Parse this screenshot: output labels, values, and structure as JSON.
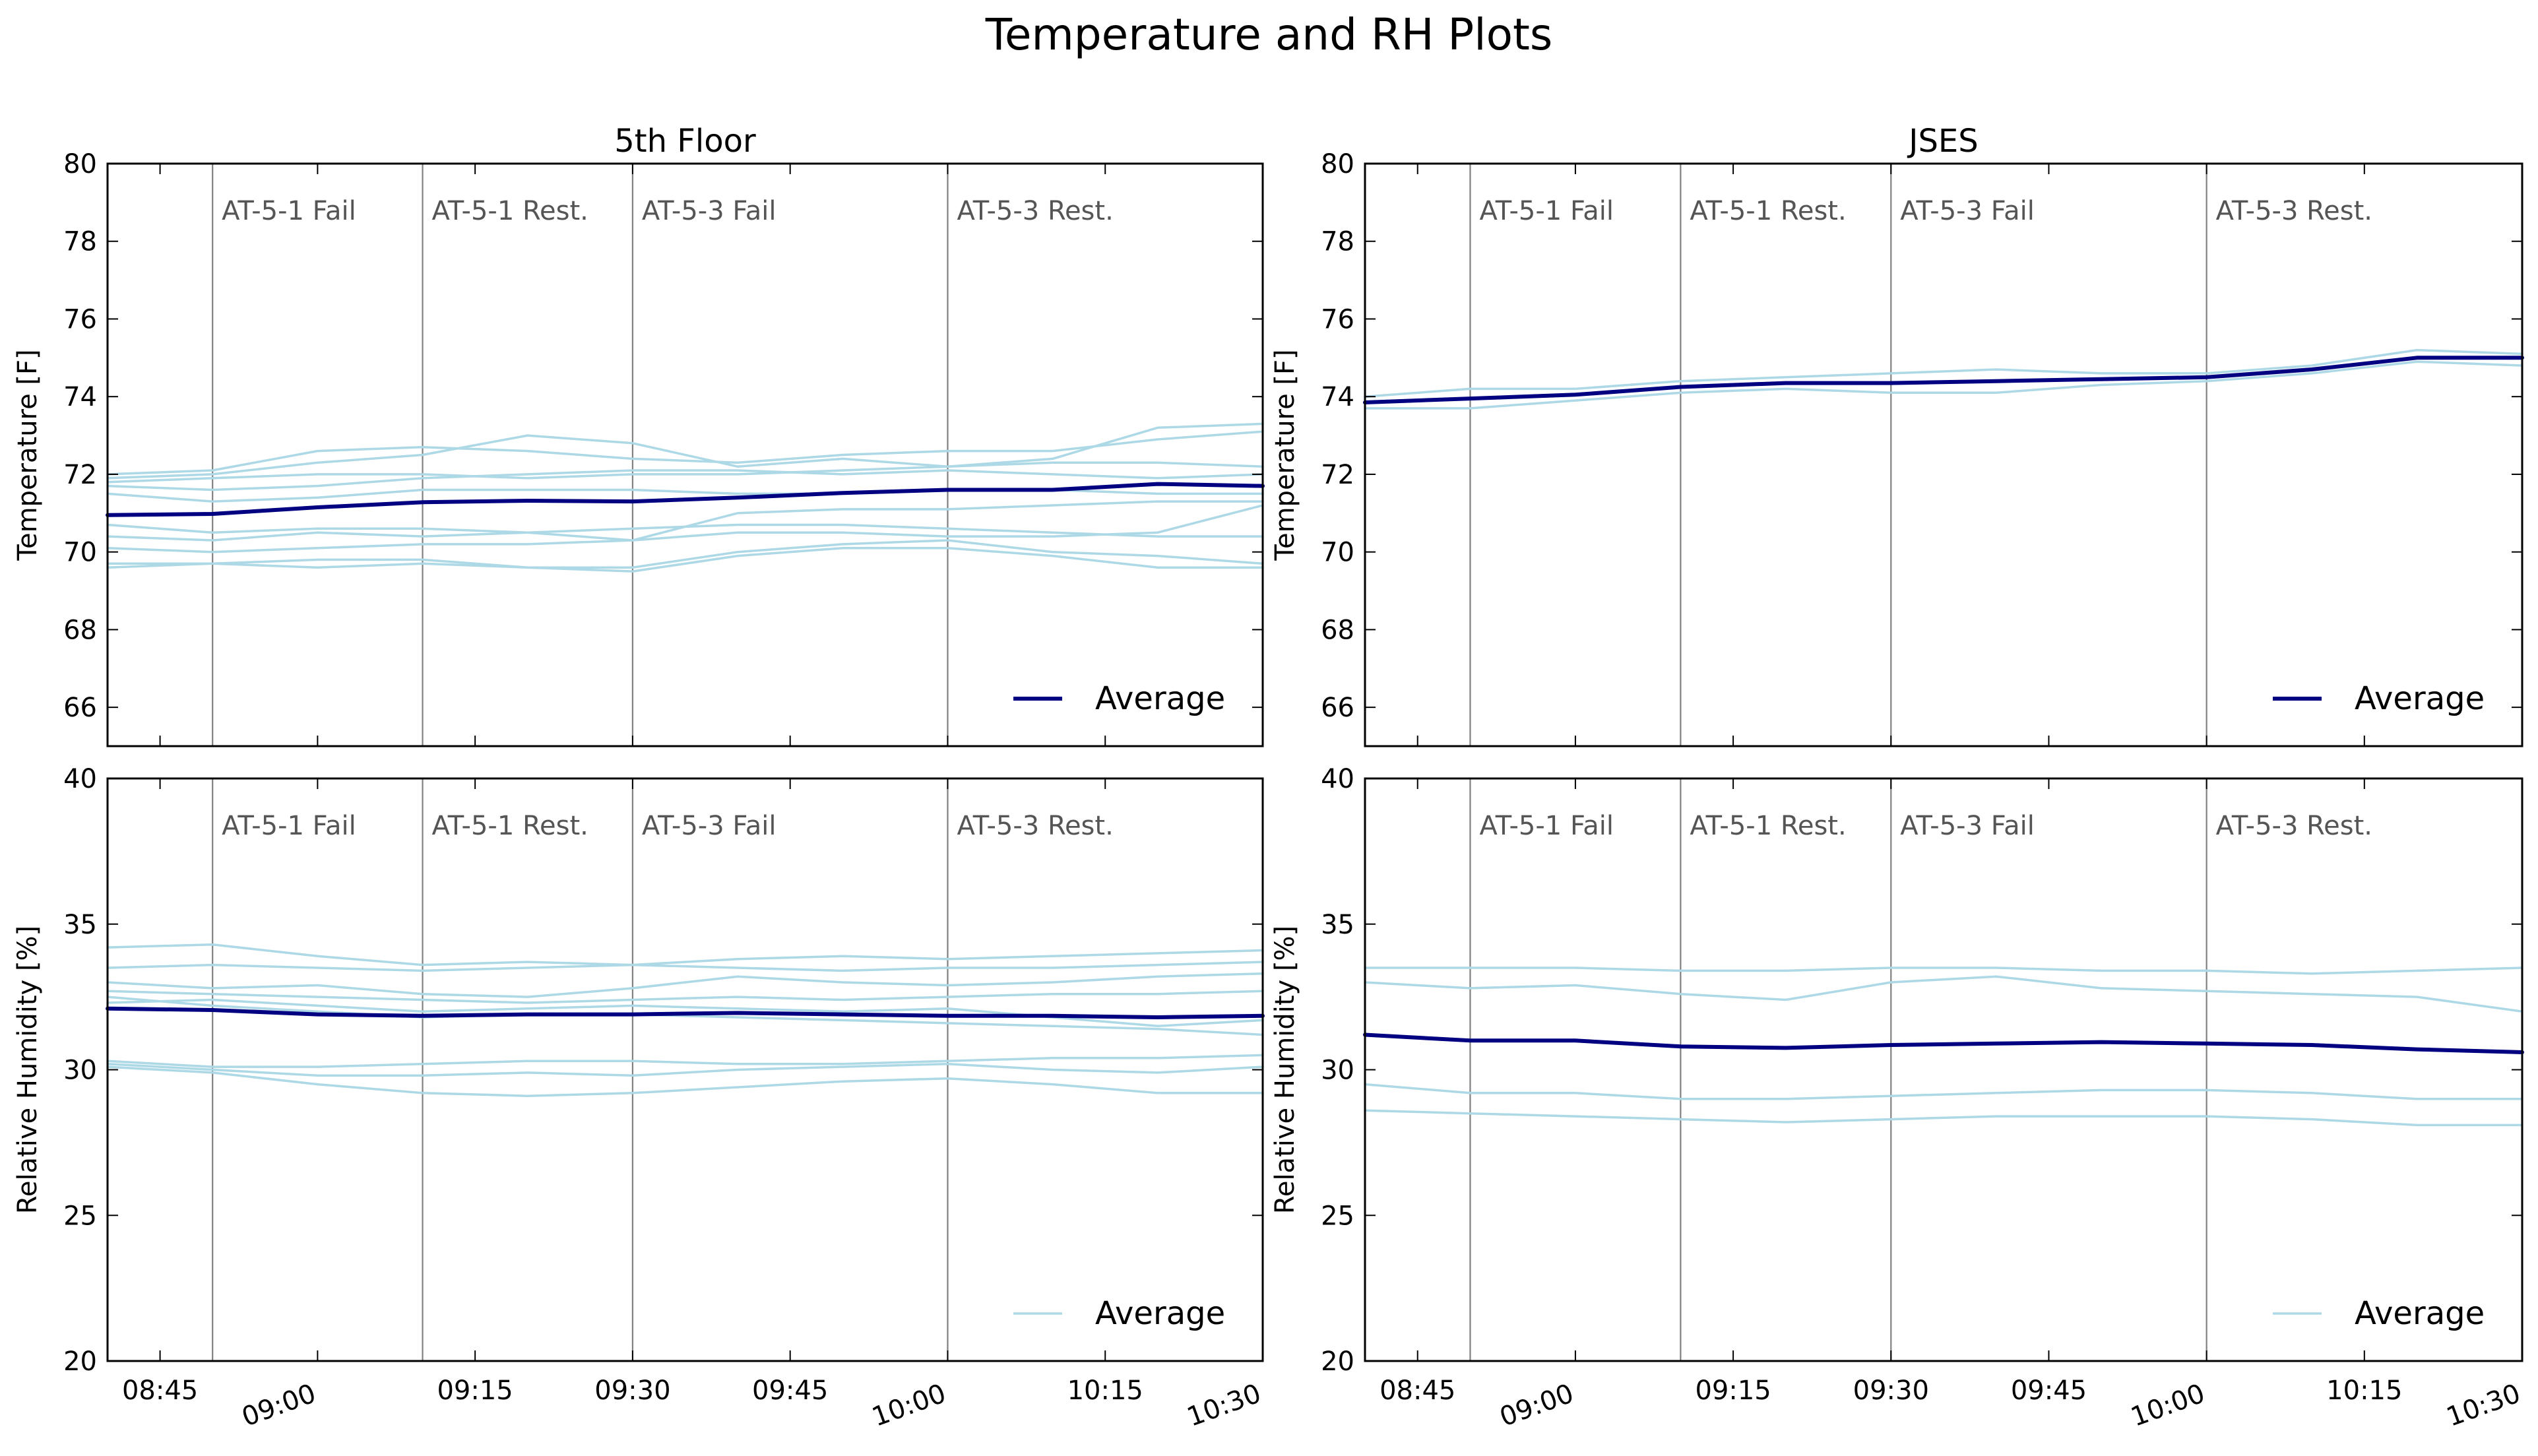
{
  "figure": {
    "title": "Temperature and RH Plots"
  },
  "colors": {
    "sensor": "#add8e6",
    "average": "#000080",
    "event_line": "#808080",
    "event_text": "#555555",
    "axes": "#000000"
  },
  "chart_data": [
    {
      "type": "line",
      "panel": "temperature",
      "column": "5th Floor",
      "title": "5th Floor",
      "xlabel": "",
      "ylabel": "Temperature [F]",
      "xlim": [
        "08:40",
        "10:30"
      ],
      "ylim": [
        65,
        80
      ],
      "xticks": [
        "08:45",
        "09:00",
        "09:15",
        "09:30",
        "09:45",
        "10:00",
        "10:15",
        "10:30"
      ],
      "xtick_rotated": [
        false,
        true,
        false,
        false,
        false,
        true,
        false,
        true
      ],
      "yticks": [
        66,
        68,
        70,
        72,
        74,
        76,
        78,
        80
      ],
      "events": [
        {
          "x": "08:50",
          "label": "AT-5-1 Fail"
        },
        {
          "x": "09:10",
          "label": "AT-5-1 Rest."
        },
        {
          "x": "09:30",
          "label": "AT-5-3 Fail"
        },
        {
          "x": "10:00",
          "label": "AT-5-3 Rest."
        }
      ],
      "legend": {
        "label": "Average",
        "placement": "lower right",
        "swatch": "average"
      },
      "x": [
        "08:40",
        "08:50",
        "09:00",
        "09:10",
        "09:20",
        "09:30",
        "09:40",
        "09:50",
        "10:00",
        "10:10",
        "10:20",
        "10:30"
      ],
      "series": [
        {
          "role": "sensor",
          "values": [
            72.0,
            72.1,
            72.6,
            72.7,
            72.6,
            72.4,
            72.3,
            72.5,
            72.6,
            72.6,
            72.9,
            73.1
          ]
        },
        {
          "role": "sensor",
          "values": [
            71.9,
            72.0,
            72.3,
            72.5,
            73.0,
            72.8,
            72.2,
            72.4,
            72.2,
            72.4,
            73.2,
            73.3
          ]
        },
        {
          "role": "sensor",
          "values": [
            71.8,
            71.9,
            72.0,
            72.0,
            71.9,
            72.0,
            72.0,
            72.1,
            72.2,
            72.3,
            72.3,
            72.2
          ]
        },
        {
          "role": "sensor",
          "values": [
            71.7,
            71.6,
            71.7,
            71.9,
            72.0,
            72.1,
            72.1,
            72.0,
            72.1,
            72.0,
            71.9,
            72.0
          ]
        },
        {
          "role": "sensor",
          "values": [
            71.5,
            71.3,
            71.4,
            71.6,
            71.6,
            71.6,
            71.5,
            71.5,
            71.6,
            71.6,
            71.5,
            71.5
          ]
        },
        {
          "role": "sensor",
          "values": [
            70.7,
            70.5,
            70.6,
            70.6,
            70.5,
            70.3,
            71.0,
            71.1,
            71.1,
            71.2,
            71.3,
            71.3
          ]
        },
        {
          "role": "sensor",
          "values": [
            70.4,
            70.3,
            70.5,
            70.4,
            70.5,
            70.6,
            70.7,
            70.7,
            70.6,
            70.5,
            70.4,
            70.4
          ]
        },
        {
          "role": "sensor",
          "values": [
            70.1,
            70.0,
            70.1,
            70.2,
            70.2,
            70.3,
            70.5,
            70.5,
            70.4,
            70.4,
            70.5,
            71.2
          ]
        },
        {
          "role": "sensor",
          "values": [
            69.7,
            69.7,
            69.8,
            69.8,
            69.6,
            69.6,
            70.0,
            70.2,
            70.3,
            70.0,
            69.9,
            69.7
          ]
        },
        {
          "role": "sensor",
          "values": [
            69.6,
            69.7,
            69.6,
            69.7,
            69.6,
            69.5,
            69.9,
            70.1,
            70.1,
            69.9,
            69.6,
            69.6
          ]
        },
        {
          "role": "average",
          "name": "Average",
          "values": [
            70.95,
            70.98,
            71.15,
            71.28,
            71.32,
            71.3,
            71.4,
            71.52,
            71.6,
            71.6,
            71.75,
            71.7
          ]
        }
      ]
    },
    {
      "type": "line",
      "panel": "temperature",
      "column": "JSES",
      "title": "JSES",
      "xlabel": "",
      "ylabel": "Temperature [F]",
      "xlim": [
        "08:40",
        "10:30"
      ],
      "ylim": [
        65,
        80
      ],
      "xticks": [
        "08:45",
        "09:00",
        "09:15",
        "09:30",
        "09:45",
        "10:00",
        "10:15",
        "10:30"
      ],
      "xtick_rotated": [
        false,
        true,
        false,
        false,
        false,
        true,
        false,
        true
      ],
      "yticks": [
        66,
        68,
        70,
        72,
        74,
        76,
        78,
        80
      ],
      "events": [
        {
          "x": "08:50",
          "label": "AT-5-1 Fail"
        },
        {
          "x": "09:10",
          "label": "AT-5-1 Rest."
        },
        {
          "x": "09:30",
          "label": "AT-5-3 Fail"
        },
        {
          "x": "10:00",
          "label": "AT-5-3 Rest."
        }
      ],
      "legend": {
        "label": "Average",
        "placement": "lower right",
        "swatch": "average"
      },
      "x": [
        "08:40",
        "08:50",
        "09:00",
        "09:10",
        "09:20",
        "09:30",
        "09:40",
        "09:50",
        "10:00",
        "10:10",
        "10:20",
        "10:30"
      ],
      "series": [
        {
          "role": "sensor",
          "values": [
            74.0,
            74.2,
            74.2,
            74.4,
            74.5,
            74.6,
            74.7,
            74.6,
            74.6,
            74.8,
            75.2,
            75.1
          ]
        },
        {
          "role": "sensor",
          "values": [
            73.7,
            73.7,
            73.9,
            74.1,
            74.2,
            74.1,
            74.1,
            74.3,
            74.4,
            74.6,
            74.9,
            74.8
          ]
        },
        {
          "role": "average",
          "name": "Average",
          "values": [
            73.85,
            73.95,
            74.05,
            74.25,
            74.35,
            74.35,
            74.4,
            74.45,
            74.5,
            74.7,
            75.0,
            75.0
          ]
        }
      ]
    },
    {
      "type": "line",
      "panel": "humidity",
      "column": "5th Floor",
      "title": "",
      "xlabel": "",
      "ylabel": "Relative Humidity [%]",
      "xlim": [
        "08:40",
        "10:30"
      ],
      "ylim": [
        20,
        40
      ],
      "xticks": [
        "08:45",
        "09:00",
        "09:15",
        "09:30",
        "09:45",
        "10:00",
        "10:15",
        "10:30"
      ],
      "xtick_rotated": [
        false,
        true,
        false,
        false,
        false,
        true,
        false,
        true
      ],
      "yticks": [
        20,
        25,
        30,
        35,
        40
      ],
      "events": [
        {
          "x": "08:50",
          "label": "AT-5-1 Fail"
        },
        {
          "x": "09:10",
          "label": "AT-5-1 Rest."
        },
        {
          "x": "09:30",
          "label": "AT-5-3 Fail"
        },
        {
          "x": "10:00",
          "label": "AT-5-3 Rest."
        }
      ],
      "legend": {
        "label": "Average",
        "placement": "lower right",
        "swatch": "sensor"
      },
      "x": [
        "08:40",
        "08:50",
        "09:00",
        "09:10",
        "09:20",
        "09:30",
        "09:40",
        "09:50",
        "10:00",
        "10:10",
        "10:20",
        "10:30"
      ],
      "series": [
        {
          "role": "sensor",
          "values": [
            34.2,
            34.3,
            33.9,
            33.6,
            33.7,
            33.6,
            33.8,
            33.9,
            33.8,
            33.9,
            34.0,
            34.1
          ]
        },
        {
          "role": "sensor",
          "values": [
            33.5,
            33.6,
            33.5,
            33.4,
            33.5,
            33.6,
            33.5,
            33.4,
            33.5,
            33.5,
            33.6,
            33.7
          ]
        },
        {
          "role": "sensor",
          "values": [
            33.0,
            32.8,
            32.9,
            32.6,
            32.5,
            32.8,
            33.2,
            33.0,
            32.9,
            33.0,
            33.2,
            33.3
          ]
        },
        {
          "role": "sensor",
          "values": [
            32.7,
            32.6,
            32.5,
            32.4,
            32.3,
            32.4,
            32.5,
            32.4,
            32.5,
            32.6,
            32.6,
            32.7
          ]
        },
        {
          "role": "sensor",
          "values": [
            32.3,
            32.4,
            32.2,
            32.0,
            32.1,
            32.2,
            32.1,
            32.0,
            32.1,
            31.8,
            31.5,
            31.7
          ]
        },
        {
          "role": "sensor",
          "values": [
            32.5,
            32.2,
            32.0,
            31.8,
            31.9,
            31.9,
            31.8,
            31.7,
            31.6,
            31.5,
            31.4,
            31.2
          ]
        },
        {
          "role": "sensor",
          "values": [
            30.3,
            30.1,
            30.1,
            30.2,
            30.3,
            30.3,
            30.2,
            30.2,
            30.3,
            30.4,
            30.4,
            30.5
          ]
        },
        {
          "role": "sensor",
          "values": [
            30.2,
            30.0,
            29.8,
            29.8,
            29.9,
            29.8,
            30.0,
            30.1,
            30.2,
            30.0,
            29.9,
            30.1
          ]
        },
        {
          "role": "sensor",
          "values": [
            30.1,
            29.9,
            29.5,
            29.2,
            29.1,
            29.2,
            29.4,
            29.6,
            29.7,
            29.5,
            29.2,
            29.2
          ]
        },
        {
          "role": "average",
          "name": "Average",
          "values": [
            32.1,
            32.05,
            31.9,
            31.85,
            31.9,
            31.9,
            31.95,
            31.9,
            31.85,
            31.85,
            31.8,
            31.85
          ]
        }
      ]
    },
    {
      "type": "line",
      "panel": "humidity",
      "column": "JSES",
      "title": "",
      "xlabel": "",
      "ylabel": "Relative Humidity [%]",
      "xlim": [
        "08:40",
        "10:30"
      ],
      "ylim": [
        20,
        40
      ],
      "xticks": [
        "08:45",
        "09:00",
        "09:15",
        "09:30",
        "09:45",
        "10:00",
        "10:15",
        "10:30"
      ],
      "xtick_rotated": [
        false,
        true,
        false,
        false,
        false,
        true,
        false,
        true
      ],
      "yticks": [
        20,
        25,
        30,
        35,
        40
      ],
      "events": [
        {
          "x": "08:50",
          "label": "AT-5-1 Fail"
        },
        {
          "x": "09:10",
          "label": "AT-5-1 Rest."
        },
        {
          "x": "09:30",
          "label": "AT-5-3 Fail"
        },
        {
          "x": "10:00",
          "label": "AT-5-3 Rest."
        }
      ],
      "legend": {
        "label": "Average",
        "placement": "lower right",
        "swatch": "sensor"
      },
      "x": [
        "08:40",
        "08:50",
        "09:00",
        "09:10",
        "09:20",
        "09:30",
        "09:40",
        "09:50",
        "10:00",
        "10:10",
        "10:20",
        "10:30"
      ],
      "series": [
        {
          "role": "sensor",
          "values": [
            33.5,
            33.5,
            33.5,
            33.4,
            33.4,
            33.5,
            33.5,
            33.4,
            33.4,
            33.3,
            33.4,
            33.5
          ]
        },
        {
          "role": "sensor",
          "values": [
            33.0,
            32.8,
            32.9,
            32.6,
            32.4,
            33.0,
            33.2,
            32.8,
            32.7,
            32.6,
            32.5,
            32.0
          ]
        },
        {
          "role": "sensor",
          "values": [
            29.5,
            29.2,
            29.2,
            29.0,
            29.0,
            29.1,
            29.2,
            29.3,
            29.3,
            29.2,
            29.0,
            29.0
          ]
        },
        {
          "role": "sensor",
          "values": [
            28.6,
            28.5,
            28.4,
            28.3,
            28.2,
            28.3,
            28.4,
            28.4,
            28.4,
            28.3,
            28.1,
            28.1
          ]
        },
        {
          "role": "average",
          "name": "Average",
          "values": [
            31.2,
            31.0,
            31.0,
            30.8,
            30.75,
            30.85,
            30.9,
            30.95,
            30.9,
            30.85,
            30.7,
            30.6
          ]
        }
      ]
    }
  ]
}
